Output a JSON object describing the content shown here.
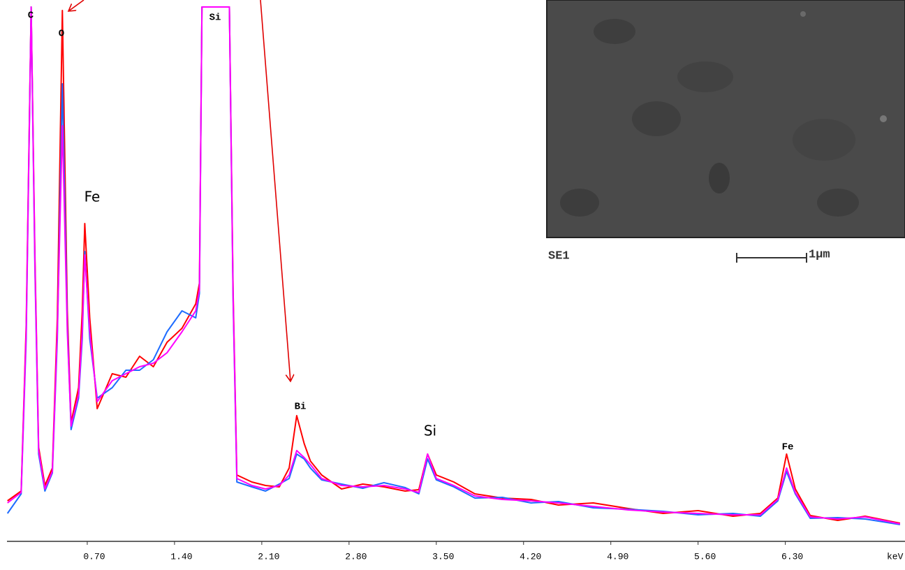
{
  "chart_data": {
    "type": "line",
    "x": [
      0.06,
      0.17,
      0.21,
      0.25,
      0.28,
      0.31,
      0.36,
      0.42,
      0.46,
      0.5,
      0.54,
      0.57,
      0.63,
      0.66,
      0.68,
      0.72,
      0.78,
      0.9,
      1.01,
      1.12,
      1.23,
      1.34,
      1.46,
      1.57,
      1.6,
      1.62,
      1.84,
      1.87,
      1.9,
      2.02,
      2.13,
      2.24,
      2.32,
      2.38,
      2.44,
      2.49,
      2.58,
      2.74,
      2.91,
      3.08,
      3.25,
      3.36,
      3.43,
      3.5,
      3.64,
      3.81,
      4.03,
      4.26,
      4.48,
      4.76,
      5.04,
      5.32,
      5.6,
      5.88,
      6.1,
      6.24,
      6.31,
      6.38,
      6.5,
      6.72,
      6.94,
      7.22
    ],
    "series": [
      {
        "color": "#ff0000",
        "values": [
          58,
          72,
          310,
          765,
          410,
          135,
          80,
          105,
          320,
          760,
          330,
          170,
          220,
          330,
          455,
          320,
          190,
          240,
          235,
          265,
          250,
          285,
          305,
          340,
          370,
          765,
          765,
          360,
          95,
          85,
          80,
          78,
          105,
          180,
          140,
          115,
          95,
          75,
          82,
          78,
          72,
          74,
          125,
          95,
          85,
          68,
          62,
          60,
          52,
          55,
          47,
          40,
          44,
          36,
          40,
          62,
          125,
          75,
          37,
          30,
          36,
          26
        ]
      },
      {
        "color": "#1e6cff",
        "values": [
          40,
          68,
          290,
          765,
          390,
          125,
          72,
          98,
          290,
          655,
          310,
          160,
          205,
          290,
          415,
          290,
          205,
          220,
          245,
          245,
          260,
          300,
          330,
          320,
          355,
          765,
          765,
          345,
          85,
          78,
          72,
          82,
          90,
          125,
          118,
          105,
          88,
          82,
          76,
          84,
          77,
          68,
          118,
          88,
          78,
          62,
          63,
          55,
          57,
          48,
          46,
          43,
          38,
          40,
          36,
          58,
          100,
          68,
          33,
          34,
          32,
          24
        ]
      },
      {
        "color": "#ff00ff",
        "values": [
          55,
          70,
          300,
          765,
          400,
          130,
          75,
          100,
          300,
          595,
          300,
          165,
          210,
          300,
          410,
          300,
          200,
          230,
          240,
          250,
          255,
          270,
          300,
          330,
          360,
          765,
          765,
          350,
          90,
          80,
          75,
          80,
          95,
          130,
          120,
          110,
          90,
          80,
          78,
          80,
          75,
          70,
          125,
          90,
          80,
          65,
          60,
          58,
          55,
          50,
          45,
          42,
          40,
          38,
          38,
          60,
          105,
          70,
          35,
          32,
          35,
          25
        ]
      }
    ],
    "xlim": [
      0,
      7.26
    ],
    "ylim": [
      0,
      765
    ],
    "xticks": [
      {
        "value": 0.7,
        "label": "0.70"
      },
      {
        "value": 1.4,
        "label": "1.40"
      },
      {
        "value": 2.1,
        "label": "2.10"
      },
      {
        "value": 2.8,
        "label": "2.80"
      },
      {
        "value": 3.5,
        "label": "3.50"
      },
      {
        "value": 4.2,
        "label": "4.20"
      },
      {
        "value": 4.9,
        "label": "4.90"
      },
      {
        "value": 5.6,
        "label": "5.60"
      },
      {
        "value": 6.3,
        "label": "6.30"
      }
    ],
    "x_unit": "keV",
    "annotations": [
      "C",
      "O",
      "Fe",
      "Si",
      "Bi",
      "Si",
      "Fe"
    ],
    "image_caption": "SE1",
    "scale_bar": "1µm"
  }
}
